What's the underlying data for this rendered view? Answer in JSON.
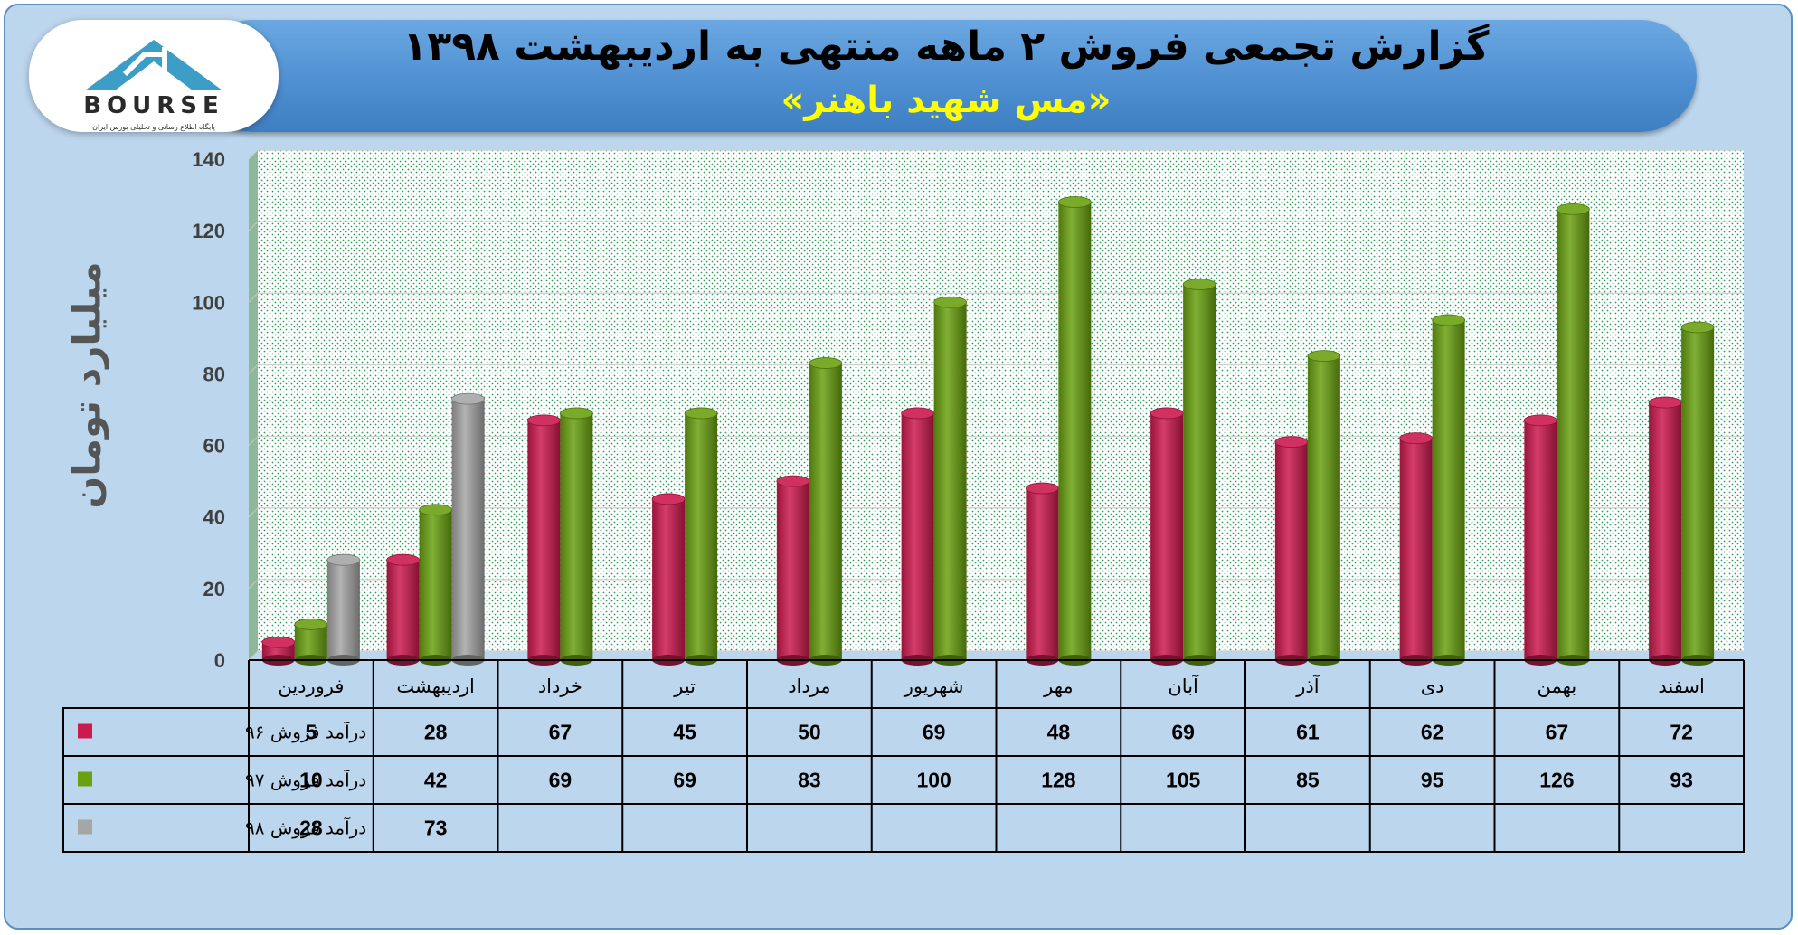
{
  "header": {
    "title": "گزارش تجمعی فروش ۲ ماهه منتهی به اردیبهشت ۱۳۹۸",
    "subtitle": "«مس شهید باهنر»"
  },
  "logo": {
    "text": "BOURSE",
    "tagline": "پایگاه اطلاع رسانی و تحلیلی بورس ایران"
  },
  "colors": {
    "series96": "#cc1a4f",
    "series97": "#6aa111",
    "series98": "#a6a6a6",
    "title": "#000000",
    "subtitle": "#ffff00"
  },
  "chart_data": {
    "type": "bar",
    "title": "گزارش تجمعی فروش ۲ ماهه منتهی به اردیبهشت ۱۳۹۸",
    "subtitle": "«مس شهید باهنر»",
    "ylabel": "میلیارد تومان",
    "xlabel": "",
    "ylim": [
      0,
      140
    ],
    "yticks": [
      0,
      20,
      40,
      60,
      80,
      100,
      120,
      140
    ],
    "grid": true,
    "legend": "data-table",
    "categories": [
      "فروردین",
      "اردیبهشت",
      "خرداد",
      "تیر",
      "مرداد",
      "شهریور",
      "مهر",
      "آبان",
      "آذر",
      "دی",
      "بهمن",
      "اسفند"
    ],
    "series": [
      {
        "name": "درآمد فروش ۹۶",
        "values": [
          5,
          28,
          67,
          45,
          50,
          69,
          48,
          69,
          61,
          62,
          67,
          72
        ]
      },
      {
        "name": "درآمد فروش ۹۷",
        "values": [
          10,
          42,
          69,
          69,
          83,
          100,
          128,
          105,
          85,
          95,
          126,
          93
        ]
      },
      {
        "name": "درآمد فروش ۹۸",
        "values": [
          28,
          73,
          null,
          null,
          null,
          null,
          null,
          null,
          null,
          null,
          null,
          null
        ]
      }
    ]
  }
}
